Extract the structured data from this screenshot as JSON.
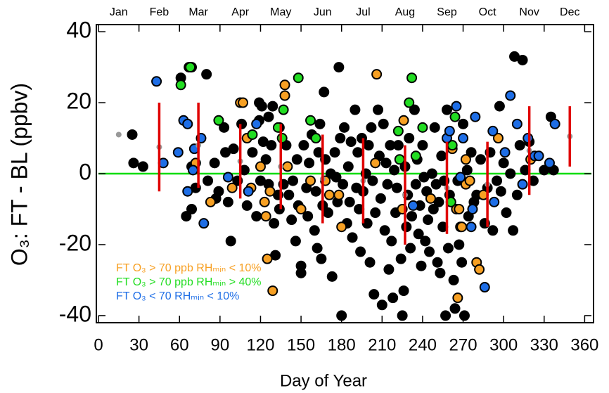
{
  "chart_data": {
    "type": "scatter",
    "xlabel": "Day of Year",
    "ylabel": "O₃:  FT - BL (ppbv)",
    "xlim": [
      0,
      365
    ],
    "ylim": [
      -42,
      42
    ],
    "xticks": [
      0,
      30,
      60,
      90,
      120,
      150,
      180,
      210,
      240,
      270,
      300,
      330,
      360
    ],
    "yticks": [
      -40,
      -20,
      0,
      20,
      40
    ],
    "x2ticks": [
      {
        "value": 15,
        "label": "Jan"
      },
      {
        "value": 45,
        "label": "Feb"
      },
      {
        "value": 74,
        "label": "Mar"
      },
      {
        "value": 105,
        "label": "Apr"
      },
      {
        "value": 135,
        "label": "May"
      },
      {
        "value": 166,
        "label": "Jun"
      },
      {
        "value": 196,
        "label": "Jul"
      },
      {
        "value": 227,
        "label": "Aug"
      },
      {
        "value": 258,
        "label": "Sep"
      },
      {
        "value": 288,
        "label": "Oct"
      },
      {
        "value": 319,
        "label": "Nov"
      },
      {
        "value": 349,
        "label": "Dec"
      }
    ],
    "hline": {
      "value": 0,
      "color": "#00dd00"
    },
    "monthly": {
      "color": "#999999",
      "error_color": "#e00000",
      "x": [
        15,
        45,
        74,
        105,
        135,
        166,
        196,
        227,
        258,
        288,
        319,
        349
      ],
      "values": [
        11,
        7.5,
        8,
        3.5,
        2,
        -1.5,
        -2,
        -6,
        -4,
        -3,
        6.5,
        10.5
      ],
      "errors": [
        null,
        12.5,
        12,
        10.5,
        12,
        12.5,
        12,
        14,
        13,
        12,
        12.5,
        8.5
      ]
    },
    "series": [
      {
        "color": "#000000",
        "x": [
          25,
          26,
          33,
          61,
          65,
          69,
          69,
          72,
          80,
          81,
          86,
          87,
          89,
          93,
          94,
          96,
          98,
          100,
          103,
          106,
          108,
          110,
          114,
          117,
          119,
          119,
          120,
          121,
          122,
          124,
          126,
          126,
          128,
          129,
          130,
          131,
          133,
          134,
          137,
          139,
          141,
          143,
          144,
          146,
          147,
          148,
          150,
          150,
          152,
          154,
          155,
          156,
          158,
          160,
          161,
          162,
          163,
          164,
          165,
          166,
          167,
          168,
          170,
          172,
          173,
          175,
          176,
          177,
          178,
          179,
          180,
          181,
          182,
          184,
          185,
          186,
          187,
          188,
          190,
          191,
          192,
          193,
          194,
          195,
          196,
          198,
          199,
          200,
          201,
          202,
          203,
          204,
          205,
          207,
          208,
          209,
          210,
          211,
          212,
          213,
          214,
          215,
          216,
          217,
          218,
          219,
          220,
          221,
          222,
          224,
          225,
          226,
          227,
          228,
          229,
          230,
          231,
          232,
          234,
          235,
          236,
          237,
          238,
          239,
          240,
          241,
          242,
          243,
          244,
          245,
          247,
          248,
          249,
          250,
          251,
          252,
          253,
          254,
          255,
          256,
          257,
          258,
          259,
          260,
          263,
          264,
          266,
          267,
          269,
          270,
          271,
          273,
          274,
          276,
          278,
          280,
          283,
          286,
          288,
          290,
          292,
          295,
          297,
          298,
          300,
          302,
          305,
          307,
          308,
          310,
          312,
          314,
          316,
          319,
          322,
          330,
          335,
          337
        ],
        "values": [
          11,
          3,
          2,
          27,
          -12,
          2,
          -10,
          -4,
          28,
          -2,
          3,
          -7,
          -5,
          13,
          6,
          -8,
          -19,
          7,
          -2,
          14,
          1,
          -9,
          6,
          -12,
          20,
          15,
          -2,
          19,
          9,
          4,
          16,
          -3,
          8,
          19,
          -14,
          -23,
          -6,
          -10,
          -3,
          8,
          -6,
          -13,
          -2,
          -19,
          4,
          -9,
          -26,
          -28,
          8,
          -4,
          -12,
          3,
          11,
          -16,
          -5,
          -21,
          6,
          14,
          -24,
          -9,
          23,
          4,
          -11,
          0,
          -29,
          6,
          -1,
          -8,
          30,
          10,
          -40,
          -3,
          13,
          -14,
          2,
          -8,
          9,
          -18,
          18,
          -4,
          6,
          -10,
          -22,
          10,
          -5,
          0,
          -14,
          8,
          -25,
          13,
          -2,
          -34,
          -11,
          18,
          5,
          -7,
          -37,
          14,
          -16,
          3,
          -3,
          -27,
          8,
          -19,
          -35,
          1,
          -11,
          -4,
          8,
          -24,
          -40,
          -33,
          2,
          -15,
          -6,
          10,
          -21,
          -12,
          18,
          -3,
          4,
          -17,
          -9,
          -26,
          8,
          -1,
          -19,
          -5,
          -13,
          -22,
          0,
          -10,
          13,
          -3,
          -25,
          -8,
          -28,
          5,
          -15,
          -2,
          -40,
          18,
          -21,
          -6,
          -30,
          -38,
          -2,
          -20,
          -25,
          14,
          -40,
          1,
          -12,
          6,
          -8,
          -6,
          4,
          -14,
          -4,
          6,
          -16,
          -2,
          19,
          -5,
          3,
          -11,
          0,
          -16,
          33,
          -6,
          8,
          32,
          1,
          9,
          -2,
          1,
          16,
          1
        ]
      },
      {
        "name": "FT O₃ > 70 ppb RHₘᵢₙ < 10%",
        "color": "#f7a023",
        "x": [
          67,
          69,
          72,
          83,
          99,
          105,
          107,
          110,
          113,
          120,
          123,
          124,
          127,
          125,
          129,
          134,
          138,
          138,
          140,
          150,
          157,
          168,
          171,
          178,
          180,
          206,
          205,
          225,
          226,
          246,
          262,
          265,
          267,
          268,
          266,
          269,
          272,
          272,
          275,
          280,
          282,
          285,
          296,
          320
        ],
        "values": [
          30,
          30,
          3,
          -8,
          -4,
          20,
          20,
          10,
          -4,
          2,
          -8,
          -12,
          -5,
          -24,
          -33,
          13,
          25,
          22,
          2,
          -10,
          -2,
          -2,
          -6,
          -6,
          -15,
          28,
          3,
          -10,
          15,
          -7,
          7,
          -10,
          -10,
          -15,
          -35,
          -15,
          4,
          -3,
          -2,
          -25,
          -27,
          -6,
          10,
          4
        ]
      },
      {
        "name": "FT O₃ > 70 ppb RHₘᵢₙ > 40%",
        "color": "#22dd22",
        "x": [
          61,
          68,
          89,
          114,
          133,
          137,
          136,
          148,
          157,
          161,
          223,
          222,
          230,
          232,
          235,
          264,
          261,
          262,
          240
        ],
        "values": [
          25,
          30,
          15,
          11,
          13,
          18,
          10,
          27,
          15,
          10,
          4,
          12,
          20,
          27,
          5,
          16,
          -8,
          8,
          13
        ]
      },
      {
        "name": "FT O₃ < 70 RHₘᵢₙ < 10%",
        "color": "#1e6ee6",
        "x": [
          43,
          48,
          59,
          63,
          66,
          66,
          70,
          71,
          76,
          78,
          96,
          111,
          117,
          233,
          258,
          260,
          265,
          268,
          270,
          276,
          277,
          279,
          286,
          292,
          293,
          301,
          305,
          310,
          314,
          318,
          323,
          338,
          326,
          334
        ],
        "values": [
          26,
          3,
          6,
          15,
          14,
          -5,
          1,
          7,
          10,
          -14,
          -1,
          -5,
          14,
          -9,
          10,
          12,
          19,
          -1,
          10,
          -15,
          -10,
          16,
          -32,
          12,
          -8,
          6,
          22,
          14,
          -3,
          10,
          5,
          14,
          5,
          3
        ]
      }
    ]
  }
}
